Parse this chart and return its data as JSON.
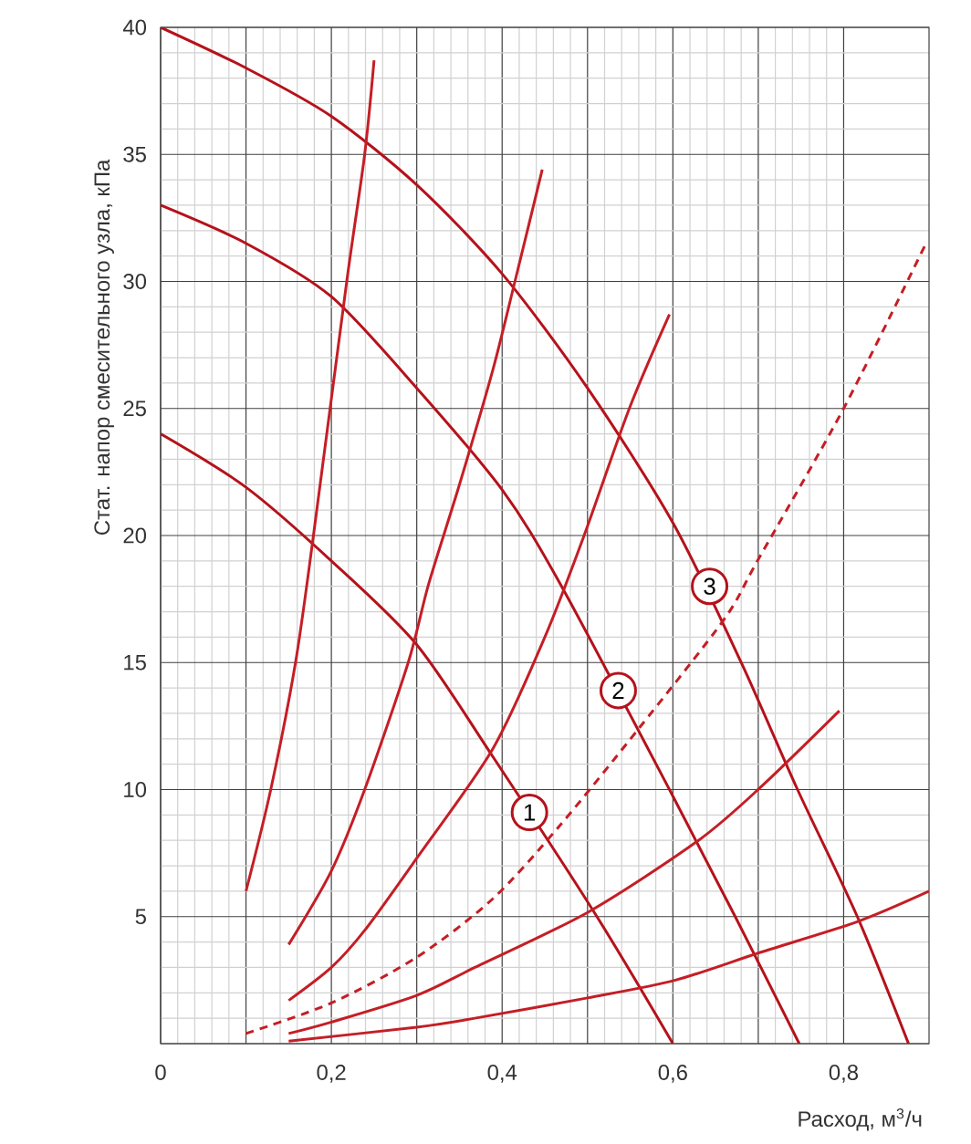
{
  "chart_data": {
    "type": "line",
    "xlabel": "Расход, м$^{3}$/ч",
    "ylabel": "Стат. напор  смесительного узла, кПа",
    "xlim": [
      0,
      0.9
    ],
    "ylim": [
      0,
      40
    ],
    "xticks": [
      0,
      {
        "value": 0.1,
        "label": null
      },
      {
        "value": 0.2,
        "label": "0,2"
      },
      {
        "value": 0.3,
        "label": null
      },
      {
        "value": 0.4,
        "label": "0,4"
      },
      {
        "value": 0.5,
        "label": null
      },
      {
        "value": 0.6,
        "label": "0,6"
      },
      {
        "value": 0.7,
        "label": null
      },
      {
        "value": 0.8,
        "label": "0,8"
      }
    ],
    "yticks": [
      {
        "value": 0,
        "label": null
      },
      5,
      10,
      15,
      20,
      25,
      30,
      35,
      40
    ],
    "grid": true,
    "line_style": "solid",
    "marker": "none",
    "series": [
      {
        "color": "#b5121b",
        "x": [
          0,
          0.1,
          0.2,
          0.3,
          0.389,
          0.511,
          0.6
        ],
        "values": [
          24,
          21.9,
          19.0,
          15.7,
          11.3,
          5,
          0
        ]
      },
      {
        "color": "#b5121b",
        "x": [
          0,
          0.1,
          0.2,
          0.3,
          0.4,
          0.468,
          0.596,
          0.673,
          0.748
        ],
        "values": [
          33,
          31.5,
          29.4,
          25.8,
          21.8,
          18.1,
          10,
          5,
          0
        ]
      },
      {
        "color": "#b5121b",
        "x": [
          0,
          0.1,
          0.2,
          0.3,
          0.4,
          0.5,
          0.6,
          0.68,
          0.746,
          0.816,
          0.876
        ],
        "values": [
          40,
          38.4,
          36.5,
          33.8,
          30.3,
          25.8,
          20.5,
          15,
          10,
          5,
          0
        ]
      },
      {
        "color": "#c41e26",
        "x": [
          0.1,
          0.129,
          0.158,
          0.179,
          0.218,
          0.239,
          0.25
        ],
        "values": [
          6.0,
          10,
          15,
          20,
          30,
          35,
          38.7
        ]
      },
      {
        "color": "#c41e26",
        "x": [
          0.15,
          0.2,
          0.239,
          0.29,
          0.314,
          0.35,
          0.389,
          0.415,
          0.447
        ],
        "values": [
          3.9,
          6.8,
          10,
          15,
          18.1,
          22,
          26.5,
          30,
          34.4
        ]
      },
      {
        "color": "#c41e26",
        "x": [
          0.15,
          0.2,
          0.24,
          0.3,
          0.389,
          0.45,
          0.496,
          0.549,
          0.596
        ],
        "values": [
          1.7,
          3.0,
          4.5,
          7.3,
          11.6,
          16,
          20,
          25,
          28.7
        ]
      },
      {
        "color": "#c41e26",
        "line_style": "dashed",
        "x": [
          0.1,
          0.2,
          0.3,
          0.389,
          0.468,
          0.56,
          0.66,
          0.699,
          0.8,
          0.895
        ],
        "values": [
          0.4,
          1.6,
          3.4,
          5.7,
          8.6,
          12.4,
          16.7,
          19.0,
          25.0,
          31.4
        ]
      },
      {
        "color": "#c41e26",
        "x": [
          0.15,
          0.2,
          0.3,
          0.368,
          0.502,
          0.63,
          0.703,
          0.795
        ],
        "values": [
          0.4,
          0.85,
          1.9,
          3.0,
          5.2,
          8.0,
          10.1,
          13.1
        ]
      },
      {
        "color": "#c41e26",
        "x": [
          0.15,
          0.3,
          0.368,
          0.5,
          0.603,
          0.703,
          0.816,
          0.9
        ],
        "values": [
          0.1,
          0.65,
          1.0,
          1.8,
          2.5,
          3.6,
          4.8,
          6.0
        ]
      }
    ],
    "annotations": [
      {
        "text": "1",
        "x": 0.432,
        "y": 9.1
      },
      {
        "text": "2",
        "x": 0.536,
        "y": 13.9
      },
      {
        "text": "3",
        "x": 0.643,
        "y": 18
      }
    ]
  }
}
